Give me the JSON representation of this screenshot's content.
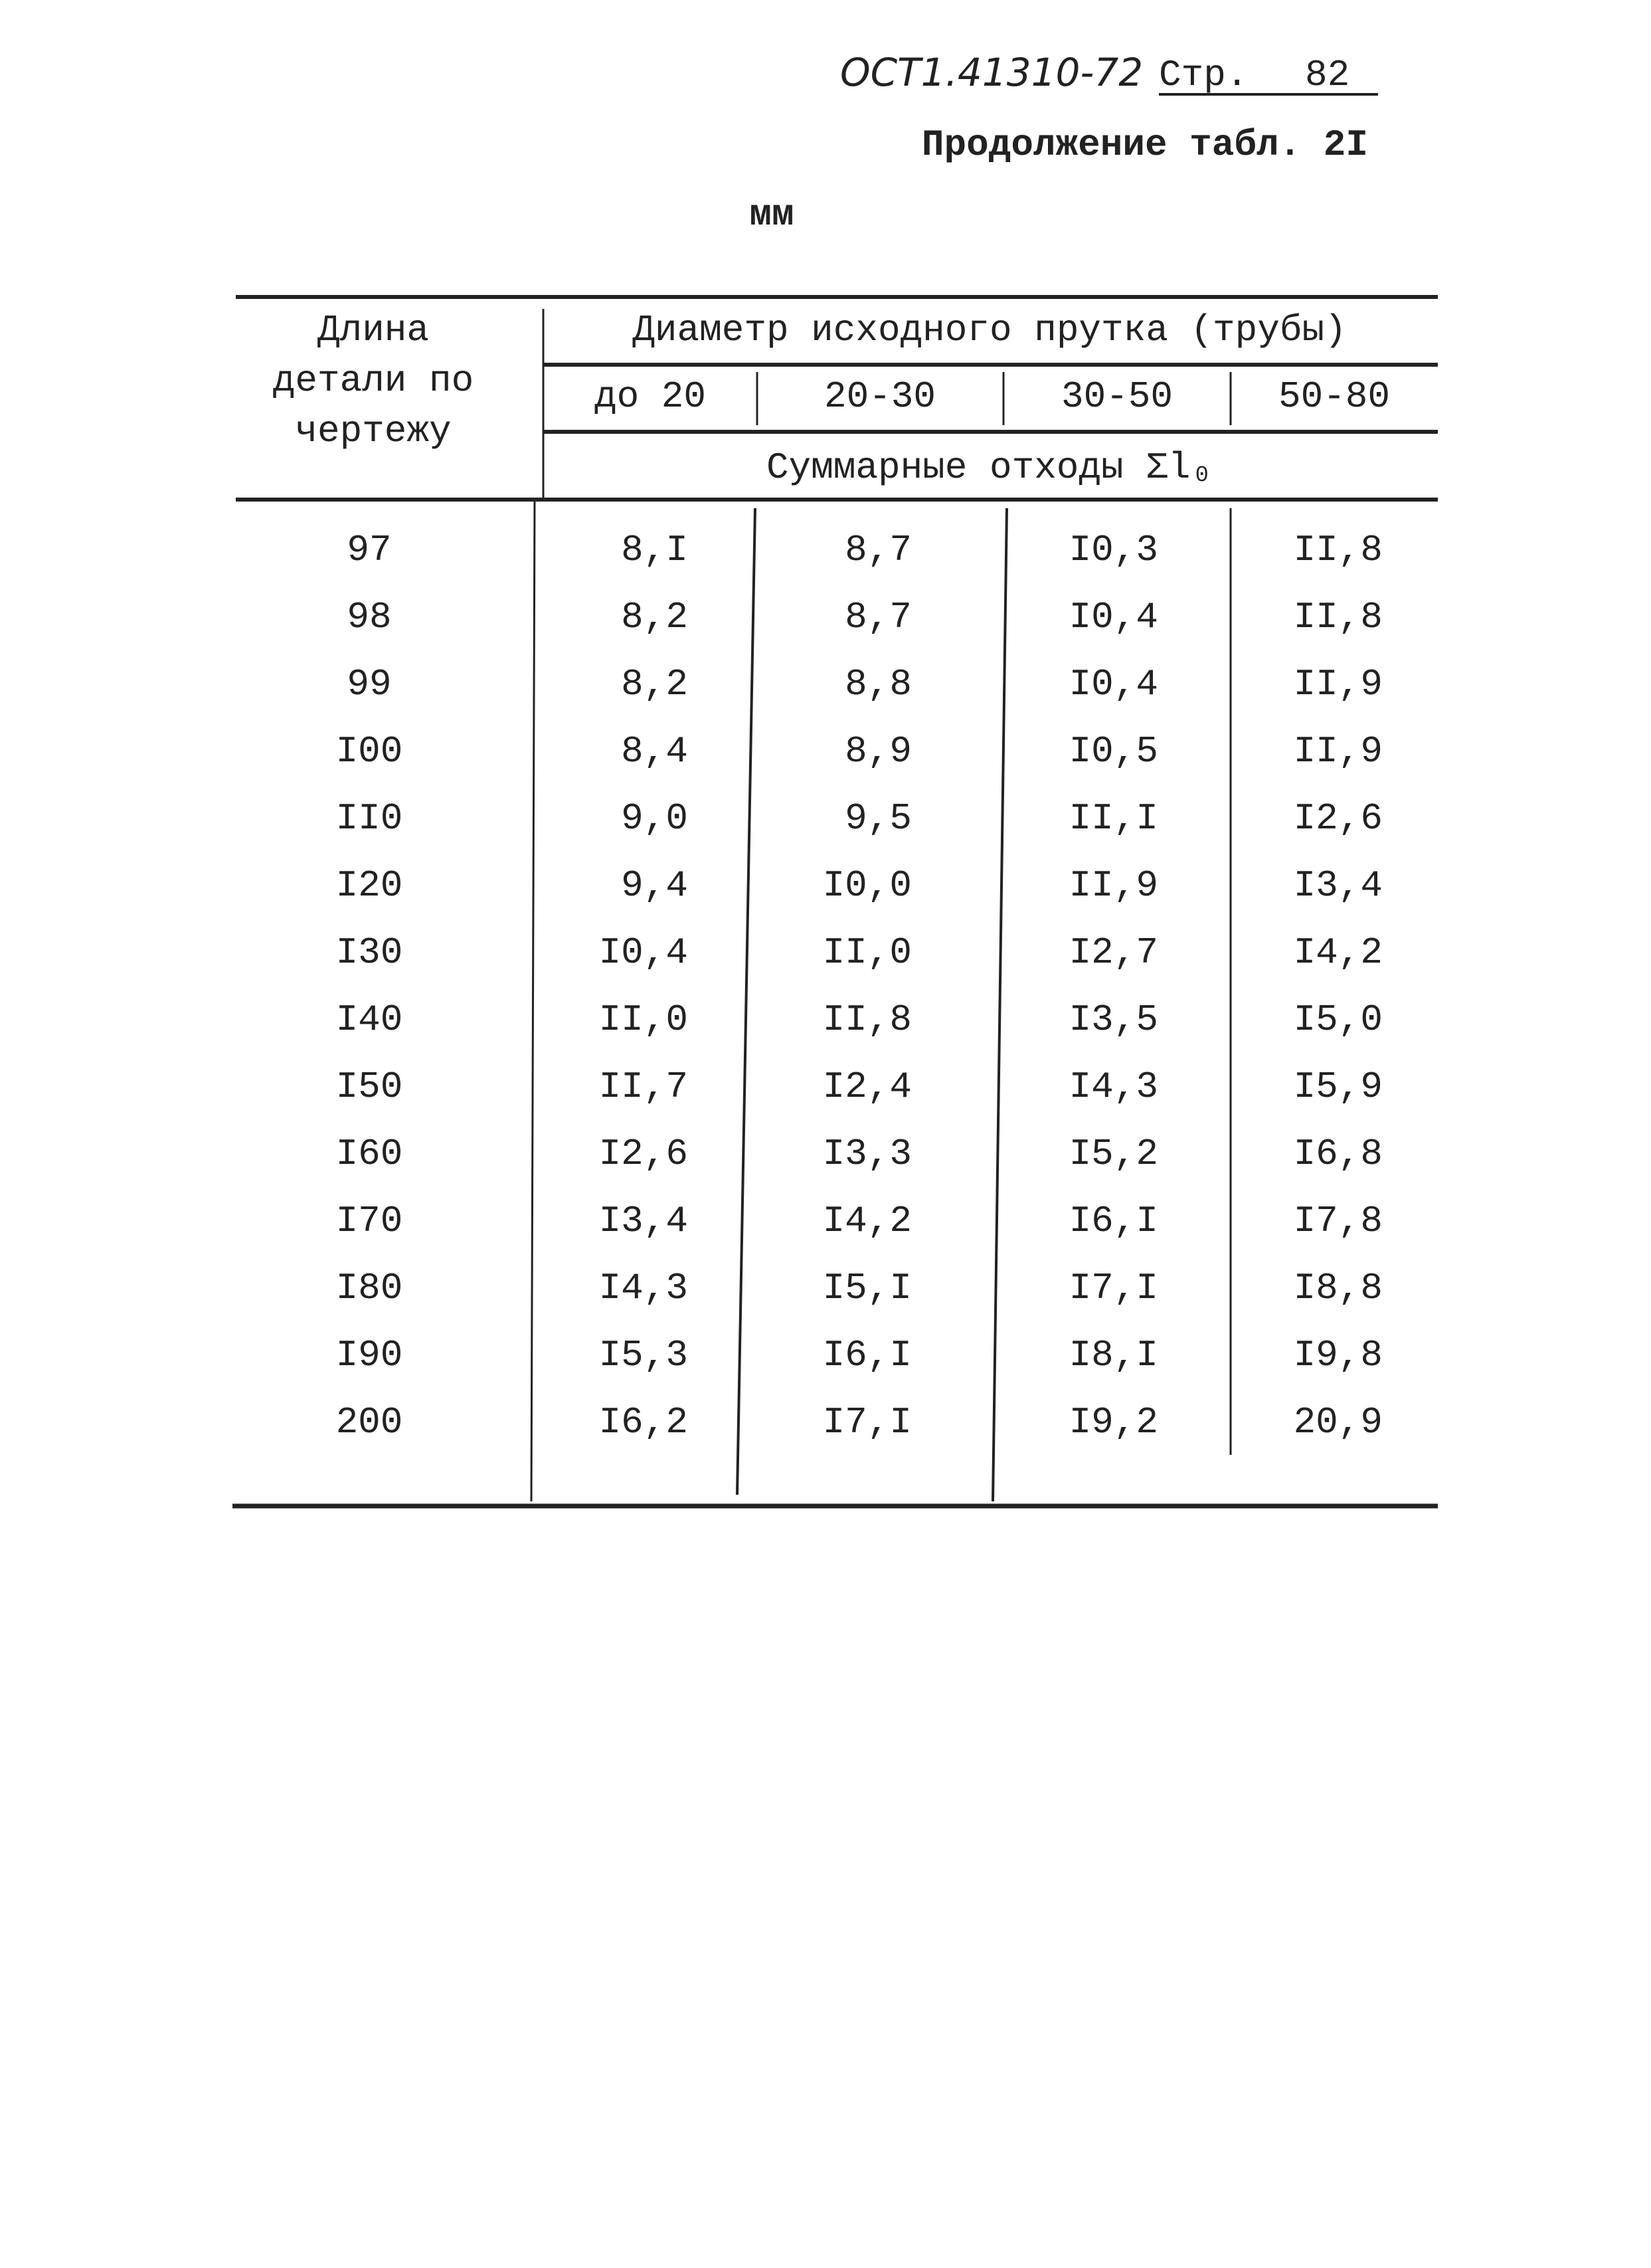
{
  "header": {
    "doc_code": "ОСТ1.41310-72",
    "page_label": "Стр.",
    "page_number": "82",
    "continuation": "Продолжение табл. 2I",
    "units": "мм"
  },
  "table": {
    "first_column_header": [
      "Длина",
      "детали по",
      "чертежу"
    ],
    "group_header": "Диаметр исходного прутка (трубы)",
    "columns": [
      "до 20",
      "20-30",
      "30-50",
      "50-80"
    ],
    "subheader": "Суммарные отходы Σl₀",
    "rows": [
      [
        "97",
        "8,I",
        "8,7",
        "I0,3",
        "II,8"
      ],
      [
        "98",
        "8,2",
        "8,7",
        "I0,4",
        "II,8"
      ],
      [
        "99",
        "8,2",
        "8,8",
        "I0,4",
        "II,9"
      ],
      [
        "I00",
        "8,4",
        "8,9",
        "I0,5",
        "II,9"
      ],
      [
        "II0",
        "9,0",
        "9,5",
        "II,I",
        "I2,6"
      ],
      [
        "I20",
        "9,4",
        "I0,0",
        "II,9",
        "I3,4"
      ],
      [
        "I30",
        "I0,4",
        "II,0",
        "I2,7",
        "I4,2"
      ],
      [
        "I40",
        "II,0",
        "II,8",
        "I3,5",
        "I5,0"
      ],
      [
        "I50",
        "II,7",
        "I2,4",
        "I4,3",
        "I5,9"
      ],
      [
        "I60",
        "I2,6",
        "I3,3",
        "I5,2",
        "I6,8"
      ],
      [
        "I70",
        "I3,4",
        "I4,2",
        "I6,I",
        "I7,8"
      ],
      [
        "I80",
        "I4,3",
        "I5,I",
        "I7,I",
        "I8,8"
      ],
      [
        "I90",
        "I5,3",
        "I6,I",
        "I8,I",
        "I9,8"
      ],
      [
        "200",
        "I6,2",
        "I7,I",
        "I9,2",
        "20,9"
      ]
    ]
  }
}
